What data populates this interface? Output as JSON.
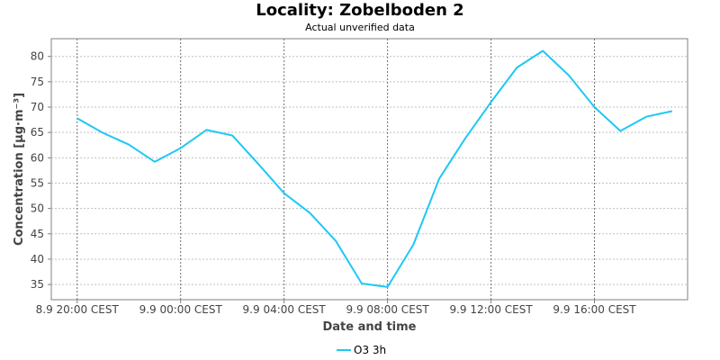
{
  "chart_data": {
    "type": "line",
    "title": "Locality: Zobelboden 2",
    "subtitle": "Actual unverified data",
    "xlabel": "Date and time",
    "ylabel": "Concentration [µg·m⁻³]",
    "ylim": [
      32,
      83.5
    ],
    "y_ticks": [
      35,
      40,
      45,
      50,
      55,
      60,
      65,
      70,
      75,
      80
    ],
    "x_ticks": [
      {
        "hour": 0,
        "label": "8.9 20:00 CEST"
      },
      {
        "hour": 4,
        "label": "9.9 00:00 CEST"
      },
      {
        "hour": 8,
        "label": "9.9 04:00 CEST"
      },
      {
        "hour": 12,
        "label": "9.9 08:00 CEST"
      },
      {
        "hour": 16,
        "label": "9.9 12:00 CEST"
      },
      {
        "hour": 20,
        "label": "9.9 16:00 CEST"
      }
    ],
    "xlim_hours": [
      -1,
      23.6
    ],
    "grid": true,
    "legend_position": "bottom-center",
    "series": [
      {
        "name": "O3 3h",
        "color": "#1ec8f5",
        "x_hours": [
          0,
          1,
          2,
          3,
          4,
          5,
          6,
          7,
          8,
          9,
          10,
          11,
          12,
          13,
          14,
          15,
          16,
          17,
          18,
          19,
          20,
          21,
          22,
          23
        ],
        "values": [
          67.8,
          64.9,
          62.6,
          59.2,
          61.9,
          65.5,
          64.4,
          58.8,
          53.0,
          49.1,
          43.6,
          35.2,
          34.5,
          42.9,
          55.9,
          63.8,
          71.0,
          77.8,
          81.1,
          76.3,
          70.0,
          65.3,
          68.1,
          69.2
        ]
      }
    ]
  }
}
